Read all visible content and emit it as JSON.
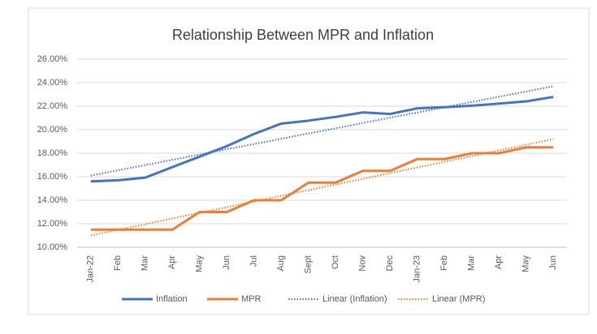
{
  "chart_data": {
    "type": "line",
    "title": "Relationship Between MPR and Inflation",
    "categories": [
      "Jan-22",
      "Feb",
      "Mar",
      "Apr",
      "May",
      "Jun",
      "Jul",
      "Aug",
      "Sept",
      "Oct",
      "Nov",
      "Dec",
      "Jan-23",
      "Feb",
      "Mar",
      "Apr",
      "May",
      "Jun"
    ],
    "series": [
      {
        "name": "Inflation",
        "color": "#4472c4",
        "style": "solid",
        "values": [
          15.6,
          15.7,
          15.92,
          16.82,
          17.71,
          18.6,
          19.64,
          20.52,
          20.77,
          21.09,
          21.47,
          21.34,
          21.82,
          21.91,
          22.04,
          22.22,
          22.41,
          22.79
        ]
      },
      {
        "name": "MPR",
        "color": "#ed7d31",
        "style": "solid",
        "values": [
          11.5,
          11.5,
          11.5,
          11.5,
          13,
          13,
          14,
          14,
          15.5,
          15.5,
          16.5,
          16.5,
          17.5,
          17.5,
          18,
          18,
          18.5,
          18.5
        ]
      },
      {
        "name": "Linear (Inflation)",
        "color": "#4472c4",
        "style": "dotted",
        "values": [
          16.1,
          16.55,
          16.99,
          17.44,
          17.89,
          18.34,
          18.78,
          19.23,
          19.68,
          20.12,
          20.57,
          21.02,
          21.46,
          21.91,
          22.36,
          22.81,
          23.25,
          23.7
        ]
      },
      {
        "name": "Linear (MPR)",
        "color": "#ed7d31",
        "style": "dotted",
        "values": [
          11.0,
          11.48,
          11.96,
          12.45,
          12.93,
          13.41,
          13.89,
          14.38,
          14.86,
          15.34,
          15.82,
          16.31,
          16.79,
          17.27,
          17.75,
          18.24,
          18.72,
          19.2
        ]
      }
    ],
    "ylim": [
      10,
      26
    ],
    "yticks": [
      {
        "value": 10,
        "label": "10.00%"
      },
      {
        "value": 12,
        "label": "12.00%"
      },
      {
        "value": 14,
        "label": "14.00%"
      },
      {
        "value": 16,
        "label": "16.00%"
      },
      {
        "value": 18,
        "label": "18.00%"
      },
      {
        "value": 20,
        "label": "20.00%"
      },
      {
        "value": 22,
        "label": "22.00%"
      },
      {
        "value": 24,
        "label": "24.00%"
      },
      {
        "value": 26,
        "label": "26.00%"
      }
    ],
    "grid": true,
    "legend": "bottom"
  }
}
